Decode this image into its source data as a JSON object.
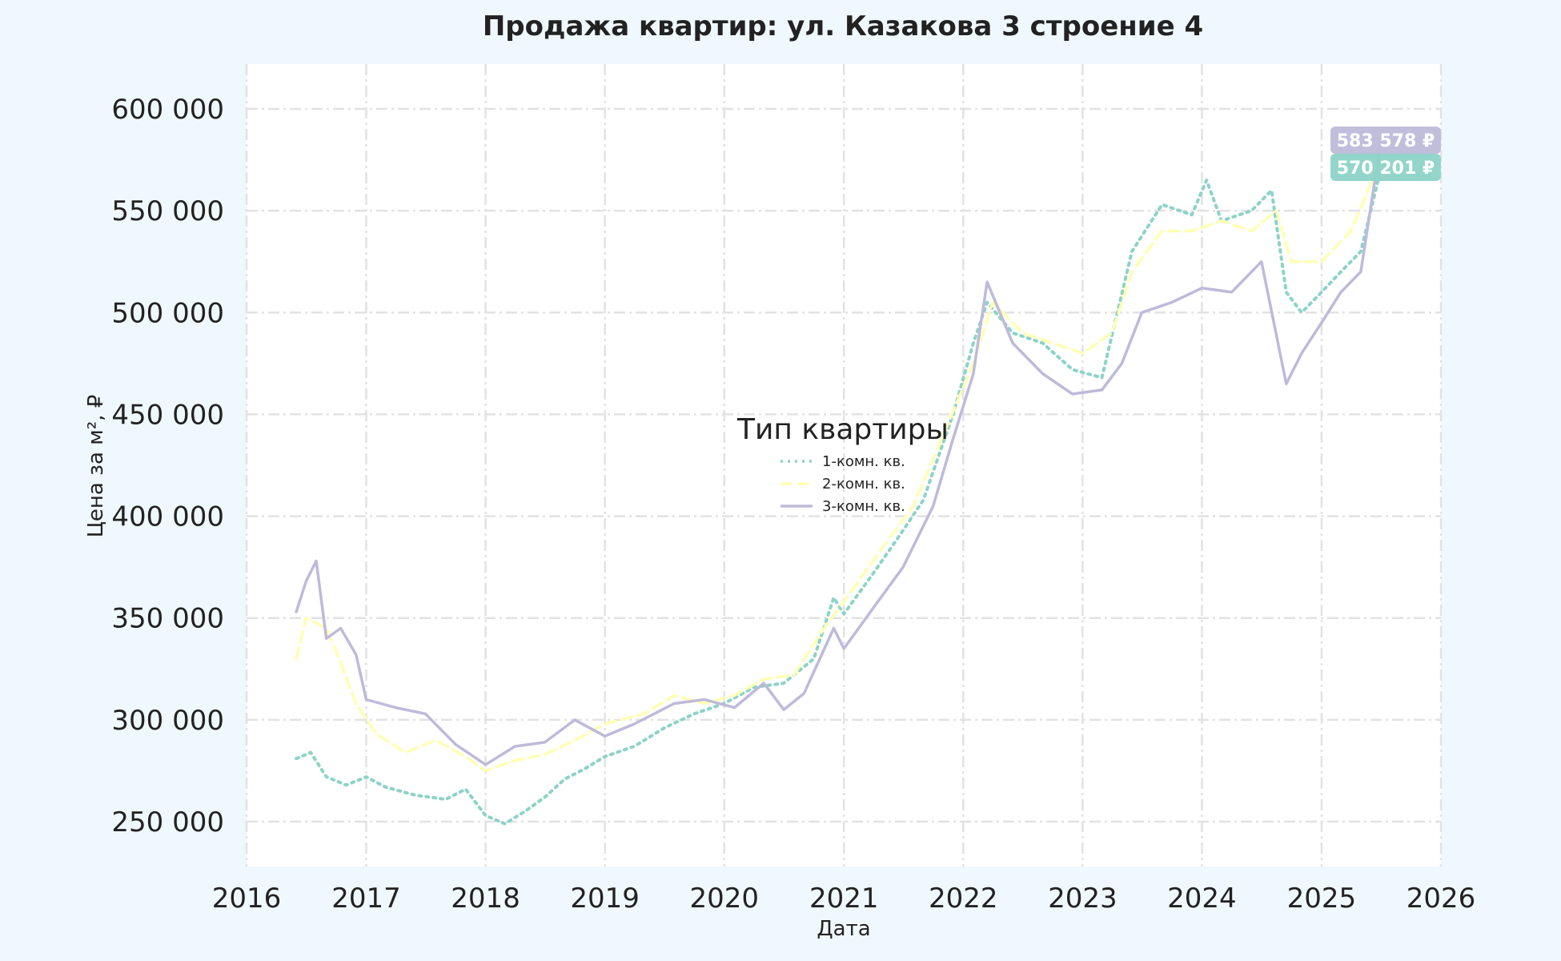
{
  "chart_data": {
    "type": "line",
    "title": "Продажа квартир: ул. Казакова 3 строение 4",
    "xlabel": "Дата",
    "ylabel": "Цена за м², ₽",
    "xlim": [
      "2016-01-01",
      "2026-01-01"
    ],
    "ylim": [
      228000,
      622000
    ],
    "x_ticks": [
      "2016",
      "2017",
      "2018",
      "2019",
      "2020",
      "2021",
      "2022",
      "2023",
      "2024",
      "2025",
      "2026"
    ],
    "y_ticks": [
      {
        "value": 250000,
        "label": "250 000"
      },
      {
        "value": 300000,
        "label": "300 000"
      },
      {
        "value": 350000,
        "label": "350 000"
      },
      {
        "value": 400000,
        "label": "400 000"
      },
      {
        "value": 450000,
        "label": "450 000"
      },
      {
        "value": 500000,
        "label": "500 000"
      },
      {
        "value": 550000,
        "label": "550 000"
      },
      {
        "value": 600000,
        "label": "600 000"
      }
    ],
    "grid": true,
    "legend_title": "Тип квартиры",
    "legend_position": "center",
    "series": [
      {
        "name": "1-комн. кв.",
        "color": "#8dd3c7",
        "style": "dotted",
        "points": [
          [
            "2016-06-01",
            281000
          ],
          [
            "2016-07-15",
            284000
          ],
          [
            "2016-09-01",
            272000
          ],
          [
            "2016-11-01",
            268000
          ],
          [
            "2017-01-01",
            272000
          ],
          [
            "2017-03-01",
            267000
          ],
          [
            "2017-06-01",
            263000
          ],
          [
            "2017-09-01",
            261000
          ],
          [
            "2017-11-01",
            266000
          ],
          [
            "2018-01-01",
            253000
          ],
          [
            "2018-03-01",
            249000
          ],
          [
            "2018-05-01",
            255000
          ],
          [
            "2018-07-01",
            262000
          ],
          [
            "2018-09-01",
            271000
          ],
          [
            "2018-11-01",
            276000
          ],
          [
            "2019-01-01",
            282000
          ],
          [
            "2019-04-01",
            287000
          ],
          [
            "2019-07-01",
            296000
          ],
          [
            "2019-10-01",
            303000
          ],
          [
            "2020-01-01",
            308000
          ],
          [
            "2020-04-01",
            316000
          ],
          [
            "2020-07-01",
            318000
          ],
          [
            "2020-10-01",
            330000
          ],
          [
            "2020-12-01",
            360000
          ],
          [
            "2021-01-01",
            352000
          ],
          [
            "2021-04-01",
            372000
          ],
          [
            "2021-07-01",
            393000
          ],
          [
            "2021-09-01",
            408000
          ],
          [
            "2021-12-01",
            450000
          ],
          [
            "2022-02-01",
            485000
          ],
          [
            "2022-03-15",
            505000
          ],
          [
            "2022-06-01",
            490000
          ],
          [
            "2022-09-01",
            485000
          ],
          [
            "2022-12-01",
            472000
          ],
          [
            "2023-03-01",
            468000
          ],
          [
            "2023-06-01",
            530000
          ],
          [
            "2023-09-01",
            553000
          ],
          [
            "2023-12-01",
            548000
          ],
          [
            "2024-01-15",
            565000
          ],
          [
            "2024-03-01",
            545000
          ],
          [
            "2024-06-01",
            550000
          ],
          [
            "2024-08-01",
            560000
          ],
          [
            "2024-09-15",
            510000
          ],
          [
            "2024-11-01",
            500000
          ],
          [
            "2025-01-01",
            510000
          ],
          [
            "2025-03-01",
            520000
          ],
          [
            "2025-05-01",
            530000
          ],
          [
            "2025-07-01",
            570201
          ]
        ]
      },
      {
        "name": "2-комн. кв.",
        "color": "#ffffb3",
        "style": "dashed",
        "points": [
          [
            "2016-06-01",
            330000
          ],
          [
            "2016-07-01",
            350000
          ],
          [
            "2016-09-01",
            345000
          ],
          [
            "2016-10-15",
            328000
          ],
          [
            "2016-12-01",
            308000
          ],
          [
            "2017-02-01",
            293000
          ],
          [
            "2017-05-01",
            284000
          ],
          [
            "2017-08-01",
            290000
          ],
          [
            "2017-11-01",
            282000
          ],
          [
            "2018-01-01",
            275000
          ],
          [
            "2018-04-01",
            280000
          ],
          [
            "2018-07-01",
            283000
          ],
          [
            "2018-10-01",
            290000
          ],
          [
            "2019-01-01",
            298000
          ],
          [
            "2019-05-01",
            303000
          ],
          [
            "2019-08-01",
            312000
          ],
          [
            "2019-11-01",
            308000
          ],
          [
            "2020-02-01",
            312000
          ],
          [
            "2020-05-01",
            320000
          ],
          [
            "2020-08-01",
            322000
          ],
          [
            "2020-11-01",
            345000
          ],
          [
            "2021-02-01",
            365000
          ],
          [
            "2021-05-01",
            385000
          ],
          [
            "2021-08-01",
            405000
          ],
          [
            "2021-11-01",
            440000
          ],
          [
            "2022-02-01",
            475000
          ],
          [
            "2022-04-01",
            505000
          ],
          [
            "2022-07-01",
            490000
          ],
          [
            "2022-10-01",
            485000
          ],
          [
            "2023-01-01",
            480000
          ],
          [
            "2023-04-01",
            490000
          ],
          [
            "2023-06-01",
            520000
          ],
          [
            "2023-09-01",
            540000
          ],
          [
            "2023-12-01",
            540000
          ],
          [
            "2024-03-01",
            545000
          ],
          [
            "2024-06-01",
            540000
          ],
          [
            "2024-08-15",
            550000
          ],
          [
            "2024-10-01",
            525000
          ],
          [
            "2025-01-01",
            525000
          ],
          [
            "2025-04-01",
            540000
          ],
          [
            "2025-07-01",
            575000
          ]
        ]
      },
      {
        "name": "3-комн. кв.",
        "color": "#bebada",
        "style": "solid",
        "points": [
          [
            "2016-06-01",
            353000
          ],
          [
            "2016-07-01",
            368000
          ],
          [
            "2016-08-01",
            378000
          ],
          [
            "2016-09-01",
            340000
          ],
          [
            "2016-10-15",
            345000
          ],
          [
            "2016-12-01",
            332000
          ],
          [
            "2017-01-01",
            310000
          ],
          [
            "2017-04-01",
            306000
          ],
          [
            "2017-07-01",
            303000
          ],
          [
            "2017-10-01",
            288000
          ],
          [
            "2018-01-01",
            278000
          ],
          [
            "2018-04-01",
            287000
          ],
          [
            "2018-07-01",
            289000
          ],
          [
            "2018-10-01",
            300000
          ],
          [
            "2019-01-01",
            292000
          ],
          [
            "2019-04-01",
            298000
          ],
          [
            "2019-08-01",
            308000
          ],
          [
            "2019-11-01",
            310000
          ],
          [
            "2020-02-01",
            306000
          ],
          [
            "2020-05-01",
            318000
          ],
          [
            "2020-07-01",
            305000
          ],
          [
            "2020-09-01",
            313000
          ],
          [
            "2020-12-01",
            345000
          ],
          [
            "2021-01-01",
            335000
          ],
          [
            "2021-04-01",
            355000
          ],
          [
            "2021-07-01",
            375000
          ],
          [
            "2021-10-01",
            405000
          ],
          [
            "2021-12-01",
            438000
          ],
          [
            "2022-02-01",
            470000
          ],
          [
            "2022-03-15",
            515000
          ],
          [
            "2022-06-01",
            485000
          ],
          [
            "2022-09-01",
            470000
          ],
          [
            "2022-12-01",
            460000
          ],
          [
            "2023-03-01",
            462000
          ],
          [
            "2023-05-01",
            475000
          ],
          [
            "2023-07-01",
            500000
          ],
          [
            "2023-10-01",
            505000
          ],
          [
            "2024-01-01",
            512000
          ],
          [
            "2024-04-01",
            510000
          ],
          [
            "2024-07-01",
            525000
          ],
          [
            "2024-09-15",
            465000
          ],
          [
            "2024-11-01",
            480000
          ],
          [
            "2025-01-01",
            495000
          ],
          [
            "2025-03-01",
            510000
          ],
          [
            "2025-05-01",
            520000
          ],
          [
            "2025-07-01",
            583578
          ]
        ]
      }
    ],
    "end_labels": [
      {
        "series": "3-комн. кв.",
        "value": 583578,
        "text": "583 578 ₽",
        "color": "#bebada"
      },
      {
        "series": "1-комн. кв.",
        "value": 570201,
        "text": "570 201 ₽",
        "color": "#8dd3c7"
      }
    ]
  }
}
